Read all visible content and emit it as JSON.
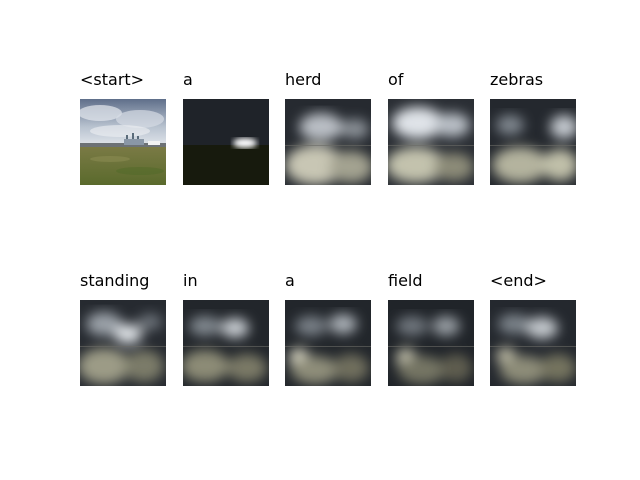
{
  "caption_words": [
    "<start>",
    "a",
    "herd",
    "of",
    "zebras",
    "standing",
    "in",
    "a",
    "field",
    "<end>"
  ]
}
